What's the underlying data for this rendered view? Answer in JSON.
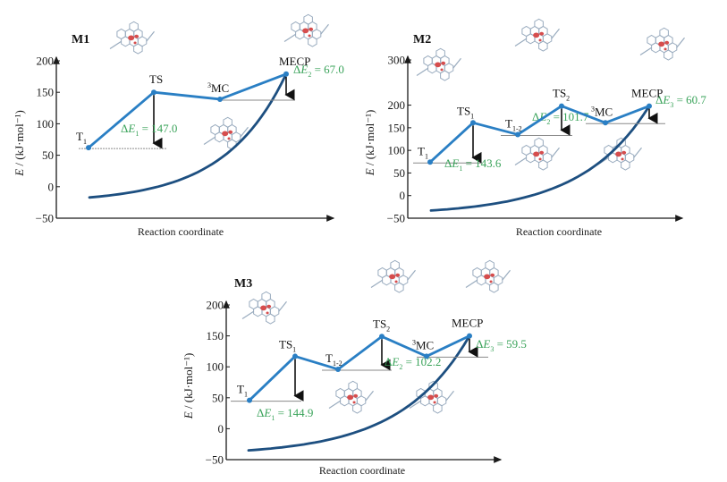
{
  "chart_data": [
    {
      "type": "line",
      "title": "M1",
      "xlabel": "Reaction coordinate",
      "ylabel": "E / (kJ·mol⁻¹)",
      "ylim": [
        -50,
        200
      ],
      "yticks": [
        -50,
        0,
        50,
        100,
        150,
        200
      ],
      "grid": false,
      "points": [
        {
          "label": "T",
          "sub": "1",
          "sup": "",
          "value": 62
        },
        {
          "label": "TS",
          "sub": "",
          "sup": "",
          "value": 150
        },
        {
          "label": "MC",
          "sub": "",
          "sup": "3",
          "value": 139
        },
        {
          "label": "MECP",
          "sub": "",
          "sup": "",
          "value": 179
        }
      ],
      "barriers": [
        {
          "name": "ΔE",
          "sub": "1",
          "value": "147.0",
          "from": 0,
          "to": 1
        },
        {
          "name": "ΔE",
          "sub": "2",
          "value": "67.0",
          "from": 2,
          "to": 3
        }
      ],
      "curve": {
        "start": -17,
        "end": 179
      }
    },
    {
      "type": "line",
      "title": "M2",
      "xlabel": "Reaction coordinate",
      "ylabel": "E / (kJ·mol⁻¹)",
      "ylim": [
        -50,
        300
      ],
      "yticks": [
        -50,
        0,
        50,
        100,
        150,
        200,
        300
      ],
      "grid": false,
      "points": [
        {
          "label": "T",
          "sub": "1",
          "sup": "",
          "value": 74
        },
        {
          "label": "TS",
          "sub": "1",
          "sup": "",
          "value": 161
        },
        {
          "label": "T",
          "sub": "1-2",
          "sup": "",
          "value": 135
        },
        {
          "label": "TS",
          "sub": "2",
          "sup": "",
          "value": 198
        },
        {
          "label": "MC",
          "sub": "",
          "sup": "3",
          "value": 161
        },
        {
          "label": "MECP",
          "sub": "",
          "sup": "",
          "value": 198
        }
      ],
      "barriers": [
        {
          "name": "ΔE",
          "sub": "1",
          "value": "143.6",
          "from": 0,
          "to": 1
        },
        {
          "name": "ΔE",
          "sub": "2",
          "value": "101.7",
          "from": 2,
          "to": 3
        },
        {
          "name": "ΔE",
          "sub": "3",
          "value": "60.7",
          "from": 4,
          "to": 5
        }
      ],
      "curve": {
        "start": -33,
        "end": 198
      }
    },
    {
      "type": "line",
      "title": "M3",
      "xlabel": "Reaction coordinate",
      "ylabel": "E / (kJ·mol⁻¹)",
      "ylim": [
        -50,
        200
      ],
      "yticks": [
        -50,
        0,
        50,
        100,
        150,
        200
      ],
      "grid": false,
      "points": [
        {
          "label": "T",
          "sub": "1",
          "sup": "",
          "value": 46
        },
        {
          "label": "TS",
          "sub": "1",
          "sup": "",
          "value": 117
        },
        {
          "label": "T",
          "sub": "1-2",
          "sup": "",
          "value": 96
        },
        {
          "label": "TS",
          "sub": "2",
          "sup": "",
          "value": 149
        },
        {
          "label": "MC",
          "sub": "",
          "sup": "3",
          "value": 117
        },
        {
          "label": "MECP",
          "sub": "",
          "sup": "",
          "value": 150
        }
      ],
      "barriers": [
        {
          "name": "ΔE",
          "sub": "1",
          "value": "144.9",
          "from": 0,
          "to": 1
        },
        {
          "name": "ΔE",
          "sub": "2",
          "value": "102.2",
          "from": 2,
          "to": 3
        },
        {
          "name": "ΔE",
          "sub": "3",
          "value": "59.5",
          "from": 4,
          "to": 5
        }
      ],
      "curve": {
        "start": -35,
        "end": 150
      }
    }
  ],
  "colors": {
    "path_line": "#2a7fc4",
    "curve": "#1d4f80",
    "barrier_text": "#3aa35a",
    "axis": "#1a1a1a",
    "reference_line": "#8a8a8a",
    "molecule_bond": "#8fa3b8",
    "spin_density": "#d23a3a"
  }
}
